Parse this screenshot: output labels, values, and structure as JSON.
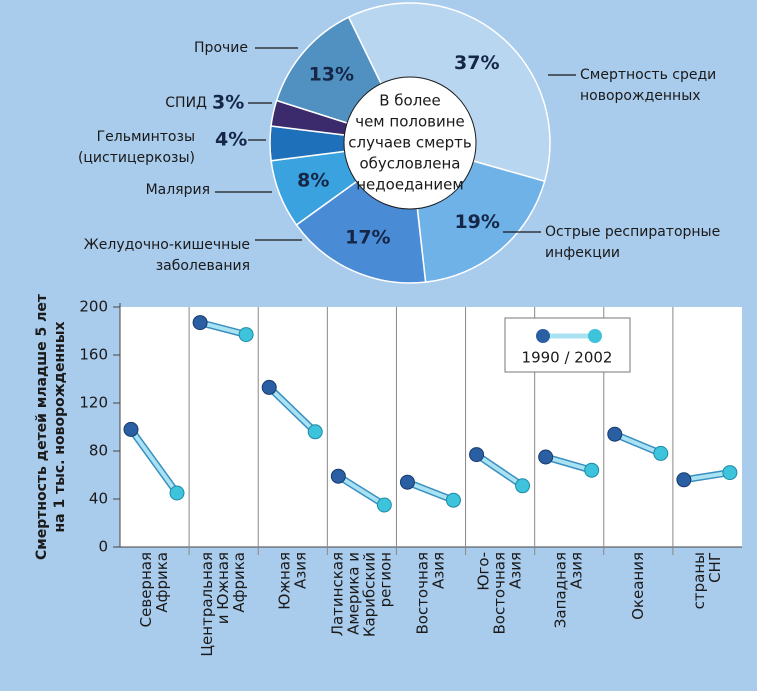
{
  "chart_data": [
    {
      "type": "pie",
      "categories": [
        [
          "Смертность среди",
          "новорожденных"
        ],
        [
          "Острые респираторные",
          "инфекции"
        ],
        [
          "Желудочно-кишечные",
          "заболевания"
        ],
        [
          "Малярия"
        ],
        [
          "Гельминтозы",
          "(цистицеркозы)"
        ],
        [
          "СПИД"
        ],
        [
          "Прочие"
        ]
      ],
      "values": [
        37,
        19,
        17,
        8,
        4,
        3,
        13
      ],
      "value_labels": [
        "37%",
        "19%",
        "17%",
        "8%",
        "4%",
        "3%",
        "13%"
      ],
      "colors": [
        "#b9d6f1",
        "#6fb2e8",
        "#4a8bd6",
        "#3aa2de",
        "#1f70ba",
        "#3b2b6c",
        "#5091c2"
      ],
      "annotation": [
        "В более",
        "чем половине",
        "случаев смерть",
        "обусловлена",
        "недоеданием"
      ]
    },
    {
      "type": "dumbbell",
      "ylabel": [
        "Смертность детей младше 5 лет",
        "на 1 тыс. новорожденных"
      ],
      "categories": [
        [
          "Северная",
          "Африка"
        ],
        [
          "Центральная",
          "и Южная",
          "Африка"
        ],
        [
          "Южная",
          "Азия"
        ],
        [
          "Латинская",
          "Америка и",
          "Карибский",
          "регион"
        ],
        [
          "Восточная",
          "Азия"
        ],
        [
          "Юго-",
          "Восточная",
          "Азия"
        ],
        [
          "Западная",
          "Азия"
        ],
        [
          "Океания"
        ],
        [
          "страны",
          "СНГ"
        ]
      ],
      "series": [
        {
          "color": "#2a5fa3",
          "values": [
            98,
            187,
            133,
            59,
            54,
            77,
            75,
            94,
            56
          ]
        },
        {
          "color": "#3ec3dc",
          "values": [
            45,
            177,
            96,
            35,
            39,
            51,
            64,
            78,
            62
          ]
        }
      ],
      "legend": "1990 / 2002",
      "ylim": [
        0,
        200
      ],
      "yticks": [
        0,
        40,
        80,
        120,
        160,
        200
      ]
    }
  ]
}
